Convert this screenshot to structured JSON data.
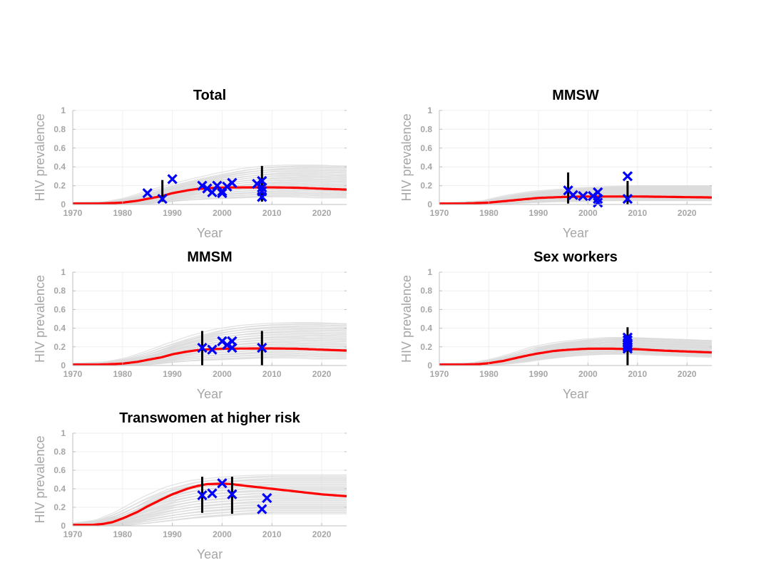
{
  "chart_data": [
    {
      "type": "line",
      "title": "Total",
      "xlabel": "Year",
      "ylabel": "HIV prevalence",
      "xlim": [
        1970,
        2025
      ],
      "ylim": [
        0,
        1
      ],
      "x_ticks": [
        "1970",
        "1980",
        "1990",
        "2000",
        "2010",
        "2020"
      ],
      "y_ticks": [
        "0",
        "0.2",
        "0.4",
        "0.6",
        "0.8",
        "1"
      ],
      "grid": true,
      "colors": {
        "model": "#ff0000",
        "data": "#0000ff",
        "interval": "#000000",
        "simulations": "#d9d9d9"
      },
      "model_curve": {
        "x": [
          1970,
          1975,
          1978,
          1980,
          1983,
          1985,
          1988,
          1990,
          1993,
          1995,
          1998,
          2000,
          2005,
          2010,
          2015,
          2020,
          2025
        ],
        "y": [
          0.01,
          0.01,
          0.015,
          0.02,
          0.04,
          0.06,
          0.09,
          0.12,
          0.15,
          0.165,
          0.175,
          0.18,
          0.182,
          0.182,
          0.178,
          0.168,
          0.158
        ]
      },
      "simulation_band": {
        "x": [
          1970,
          1978,
          1982,
          1986,
          1990,
          1995,
          2000,
          2005,
          2010,
          2015,
          2020,
          2025
        ],
        "upper": [
          0.02,
          0.03,
          0.07,
          0.14,
          0.2,
          0.27,
          0.33,
          0.38,
          0.41,
          0.42,
          0.42,
          0.41
        ],
        "lower": [
          0,
          0,
          0,
          0.01,
          0.03,
          0.05,
          0.06,
          0.07,
          0.08,
          0.08,
          0.07,
          0.07
        ]
      },
      "data_points": {
        "x": [
          1985,
          1988,
          1990,
          1996,
          1997,
          1998,
          1999,
          2000,
          2000,
          2001,
          2002,
          2007,
          2008,
          2008,
          2008,
          2008
        ],
        "y": [
          0.12,
          0.06,
          0.27,
          0.2,
          0.17,
          0.13,
          0.2,
          0.14,
          0.12,
          0.19,
          0.23,
          0.22,
          0.25,
          0.14,
          0.08,
          0.18
        ]
      },
      "intervals": [
        {
          "x": 1988,
          "low": 0.03,
          "high": 0.26
        },
        {
          "x": 2008,
          "low": 0.03,
          "high": 0.41
        }
      ]
    },
    {
      "type": "line",
      "title": "MMSW",
      "xlabel": "Year",
      "ylabel": "HIV prevalence",
      "xlim": [
        1970,
        2025
      ],
      "ylim": [
        0,
        1
      ],
      "x_ticks": [
        "1970",
        "1980",
        "1990",
        "2000",
        "2010",
        "2020"
      ],
      "y_ticks": [
        "0",
        "0.2",
        "0.4",
        "0.6",
        "0.8",
        "1"
      ],
      "grid": true,
      "colors": {
        "model": "#ff0000",
        "data": "#0000ff",
        "interval": "#000000",
        "simulations": "#d9d9d9"
      },
      "model_curve": {
        "x": [
          1970,
          1975,
          1980,
          1983,
          1986,
          1990,
          1995,
          2000,
          2005,
          2010,
          2015,
          2020,
          2025
        ],
        "y": [
          0.01,
          0.01,
          0.02,
          0.035,
          0.05,
          0.07,
          0.08,
          0.085,
          0.085,
          0.085,
          0.082,
          0.078,
          0.075
        ]
      },
      "simulation_band": {
        "x": [
          1970,
          1980,
          1985,
          1990,
          1995,
          2000,
          2005,
          2010,
          2015,
          2020,
          2025
        ],
        "upper": [
          0.01,
          0.04,
          0.1,
          0.14,
          0.16,
          0.18,
          0.19,
          0.2,
          0.2,
          0.2,
          0.2
        ],
        "lower": [
          0,
          0,
          0.01,
          0.02,
          0.03,
          0.03,
          0.04,
          0.04,
          0.04,
          0.04,
          0.04
        ]
      },
      "data_points": {
        "x": [
          1996,
          1997,
          1999,
          2001,
          2002,
          2002,
          2002,
          2008,
          2008
        ],
        "y": [
          0.15,
          0.1,
          0.09,
          0.09,
          0.13,
          0.06,
          0.02,
          0.3,
          0.06
        ]
      },
      "intervals": [
        {
          "x": 1996,
          "low": 0.01,
          "high": 0.34
        },
        {
          "x": 2008,
          "low": 0.0,
          "high": 0.25
        }
      ]
    },
    {
      "type": "line",
      "title": "MMSM",
      "xlabel": "Year",
      "ylabel": "HIV prevalence",
      "xlim": [
        1970,
        2025
      ],
      "ylim": [
        0,
        1
      ],
      "x_ticks": [
        "1970",
        "1980",
        "1990",
        "2000",
        "2010",
        "2020"
      ],
      "y_ticks": [
        "0",
        "0.2",
        "0.4",
        "0.6",
        "0.8",
        "1"
      ],
      "grid": true,
      "colors": {
        "model": "#ff0000",
        "data": "#0000ff",
        "interval": "#000000",
        "simulations": "#d9d9d9"
      },
      "model_curve": {
        "x": [
          1970,
          1975,
          1978,
          1980,
          1983,
          1985,
          1988,
          1990,
          1993,
          1995,
          1998,
          2000,
          2005,
          2010,
          2015,
          2020,
          2025
        ],
        "y": [
          0.01,
          0.01,
          0.015,
          0.02,
          0.04,
          0.06,
          0.09,
          0.12,
          0.15,
          0.165,
          0.175,
          0.18,
          0.182,
          0.183,
          0.18,
          0.17,
          0.16
        ]
      },
      "simulation_band": {
        "x": [
          1970,
          1978,
          1982,
          1986,
          1990,
          1995,
          2000,
          2005,
          2010,
          2015,
          2020,
          2025
        ],
        "upper": [
          0.02,
          0.04,
          0.08,
          0.15,
          0.23,
          0.32,
          0.39,
          0.43,
          0.45,
          0.46,
          0.46,
          0.45
        ],
        "lower": [
          0,
          0,
          0,
          0.01,
          0.03,
          0.05,
          0.06,
          0.07,
          0.08,
          0.08,
          0.07,
          0.07
        ]
      },
      "data_points": {
        "x": [
          1996,
          1998,
          2000,
          2001,
          2002,
          2002,
          2008
        ],
        "y": [
          0.19,
          0.17,
          0.26,
          0.22,
          0.26,
          0.19,
          0.19
        ]
      },
      "intervals": [
        {
          "x": 1996,
          "low": 0.0,
          "high": 0.37
        },
        {
          "x": 2008,
          "low": 0.0,
          "high": 0.37
        }
      ]
    },
    {
      "type": "line",
      "title": "Sex workers",
      "xlabel": "Year",
      "ylabel": "HIV prevalence",
      "xlim": [
        1970,
        2025
      ],
      "ylim": [
        0,
        1
      ],
      "x_ticks": [
        "1970",
        "1980",
        "1990",
        "2000",
        "2010",
        "2020"
      ],
      "y_ticks": [
        "0",
        "0.2",
        "0.4",
        "0.6",
        "0.8",
        "1"
      ],
      "grid": true,
      "colors": {
        "model": "#ff0000",
        "data": "#0000ff",
        "interval": "#000000",
        "simulations": "#d9d9d9"
      },
      "model_curve": {
        "x": [
          1970,
          1975,
          1978,
          1980,
          1983,
          1985,
          1988,
          1990,
          1993,
          1995,
          1998,
          2000,
          2005,
          2010,
          2015,
          2020,
          2025
        ],
        "y": [
          0.01,
          0.01,
          0.015,
          0.025,
          0.05,
          0.075,
          0.11,
          0.13,
          0.155,
          0.165,
          0.175,
          0.18,
          0.18,
          0.175,
          0.16,
          0.15,
          0.14
        ]
      },
      "simulation_band": {
        "x": [
          1970,
          1978,
          1982,
          1986,
          1990,
          1995,
          2000,
          2005,
          2010,
          2015,
          2020,
          2025
        ],
        "upper": [
          0.02,
          0.03,
          0.07,
          0.13,
          0.2,
          0.25,
          0.28,
          0.3,
          0.3,
          0.29,
          0.28,
          0.27
        ],
        "lower": [
          0,
          0,
          0.01,
          0.03,
          0.06,
          0.09,
          0.11,
          0.12,
          0.12,
          0.11,
          0.1,
          0.09
        ]
      },
      "data_points": {
        "x": [
          2008,
          2008,
          2008,
          2008,
          2008,
          2008
        ],
        "y": [
          0.3,
          0.27,
          0.24,
          0.22,
          0.2,
          0.18
        ]
      },
      "intervals": [
        {
          "x": 2008,
          "low": 0.0,
          "high": 0.41
        }
      ]
    },
    {
      "type": "line",
      "title": "Transwomen at higher risk",
      "xlabel": "Year",
      "ylabel": "HIV prevalence",
      "xlim": [
        1970,
        2025
      ],
      "ylim": [
        0,
        1
      ],
      "x_ticks": [
        "1970",
        "1980",
        "1990",
        "2000",
        "2010",
        "2020"
      ],
      "y_ticks": [
        "0",
        "0.2",
        "0.4",
        "0.6",
        "0.8",
        "1"
      ],
      "grid": true,
      "colors": {
        "model": "#ff0000",
        "data": "#0000ff",
        "interval": "#000000",
        "simulations": "#d9d9d9"
      },
      "model_curve": {
        "x": [
          1970,
          1974,
          1976,
          1978,
          1980,
          1983,
          1985,
          1988,
          1990,
          1993,
          1995,
          1997,
          2000,
          2002,
          2005,
          2010,
          2015,
          2020,
          2025
        ],
        "y": [
          0.01,
          0.01,
          0.02,
          0.04,
          0.08,
          0.15,
          0.21,
          0.29,
          0.34,
          0.4,
          0.43,
          0.45,
          0.455,
          0.45,
          0.43,
          0.4,
          0.37,
          0.34,
          0.32
        ]
      },
      "simulation_band": {
        "x": [
          1970,
          1976,
          1980,
          1985,
          1990,
          1995,
          2000,
          2005,
          2010,
          2015,
          2020,
          2025
        ],
        "upper": [
          0.02,
          0.06,
          0.15,
          0.3,
          0.42,
          0.49,
          0.52,
          0.54,
          0.55,
          0.55,
          0.55,
          0.55
        ],
        "lower": [
          0,
          0,
          0,
          0.02,
          0.05,
          0.08,
          0.1,
          0.12,
          0.13,
          0.13,
          0.13,
          0.13
        ]
      },
      "data_points": {
        "x": [
          1996,
          1998,
          2000,
          2002,
          2008,
          2009
        ],
        "y": [
          0.33,
          0.35,
          0.46,
          0.34,
          0.18,
          0.3
        ]
      },
      "intervals": [
        {
          "x": 1996,
          "low": 0.14,
          "high": 0.53
        },
        {
          "x": 2002,
          "low": 0.13,
          "high": 0.53
        }
      ]
    }
  ]
}
